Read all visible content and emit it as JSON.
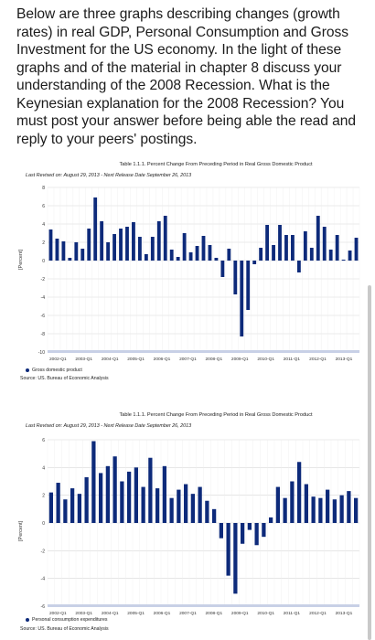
{
  "prompt": "Below are three graphs describing changes (growth rates) in real GDP, Personal Consumption and Gross Investment for the US economy. In the light of these graphs and of the material in chapter 8 discuss your understanding of the 2008 Recession. What is the Keynesian explanation for the 2008 Recession? You must post your answer before being able the read and reply to your peers' postings.",
  "colors": {
    "bar": "#0d2a7a",
    "grid": "#d8d8d8"
  },
  "chart_data": [
    {
      "type": "bar",
      "title": "Table 1.1.1. Percent Change From Preceding Period in Real Gross Domestic Product",
      "subtitle": "Last Revised on: August 29, 2013 - Next Release Date September 26, 2013",
      "ylabel": "[Percent]",
      "legend": "Gross domestic product",
      "source": "Source: US. Bureau of Economic Analysis",
      "ylim": [
        -10,
        8
      ],
      "yticks": [
        "8",
        "6",
        "4",
        "2",
        "0",
        "-2",
        "-4",
        "-6",
        "-8",
        "-10"
      ],
      "xticks": [
        "2002-Q1",
        "2003-Q1",
        "2004-Q1",
        "2005-Q1",
        "2006-Q1",
        "2007-Q1",
        "2008-Q1",
        "2009-Q1",
        "2010-Q1",
        "2011-Q1",
        "2012-Q1",
        "2013-Q1"
      ],
      "values": [
        3.4,
        2.4,
        2.1,
        0.3,
        2.0,
        1.3,
        3.5,
        6.9,
        4.3,
        2.0,
        2.9,
        3.5,
        3.7,
        4.2,
        2.6,
        0.7,
        2.6,
        4.3,
        4.9,
        1.2,
        0.4,
        3.0,
        0.9,
        1.6,
        2.7,
        1.7,
        0.3,
        -1.8,
        1.3,
        -3.7,
        -8.3,
        -5.4,
        -0.4,
        1.4,
        3.9,
        1.7,
        3.9,
        2.8,
        2.8,
        -1.3,
        3.2,
        1.4,
        4.9,
        3.7,
        1.2,
        2.8,
        0.1,
        1.1,
        2.5
      ]
    },
    {
      "type": "bar",
      "title": "Table 1.1.1. Percent Change From Preceding Period in Real Gross Domestic Product",
      "subtitle": "Last Revised on: August 29, 2013 - Next Release Date September 26, 2013",
      "ylabel": "[Percent]",
      "legend": "Personal consumption expenditures",
      "source": "Source: US. Bureau of Economic Analysis",
      "ylim": [
        -6,
        6
      ],
      "yticks": [
        "6",
        "4",
        "2",
        "0",
        "-2",
        "-4",
        "-6"
      ],
      "xticks": [
        "2002-Q1",
        "2003-Q1",
        "2004-Q1",
        "2005-Q1",
        "2006-Q1",
        "2007-Q1",
        "2008-Q1",
        "2009-Q1",
        "2010-Q1",
        "2011-Q1",
        "2012-Q1",
        "2013-Q1"
      ],
      "values": [
        2.2,
        2.9,
        1.7,
        2.5,
        2.1,
        3.3,
        5.9,
        3.6,
        4.1,
        4.8,
        3.0,
        3.7,
        4.0,
        2.6,
        4.7,
        2.5,
        4.1,
        1.8,
        2.4,
        2.8,
        2.1,
        2.6,
        1.6,
        1.0,
        -1.1,
        -3.8,
        -5.1,
        -1.5,
        -0.5,
        -1.6,
        -1.0,
        0.4,
        2.6,
        1.8,
        3.0,
        4.4,
        2.8,
        1.9,
        1.8,
        2.4,
        1.7,
        2.0,
        2.3,
        1.8
      ]
    }
  ]
}
